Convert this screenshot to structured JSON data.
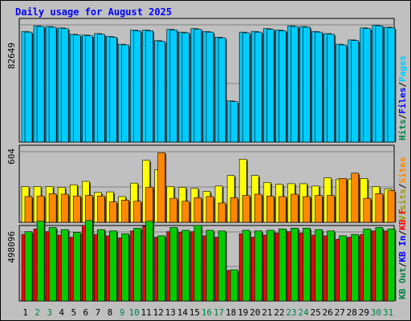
{
  "colors": {
    "background": "#c0c0c0",
    "panel": "#c0c0c0",
    "hits": "#00ccff",
    "files": "#0000ff",
    "pages": "#00ccff",
    "visits": "#ffff00",
    "sites": "#ff8800",
    "kb_in": "#00cc00",
    "kb_out": "#00cc00",
    "kb_f": "#ff0000",
    "weekend_label": "#008040",
    "weekday_label": "#000000",
    "title": "#0000ff"
  },
  "chart_data": {
    "type": "bar",
    "title": "Daily usage for August 2025",
    "categories": [
      "1",
      "2",
      "3",
      "4",
      "5",
      "6",
      "7",
      "8",
      "9",
      "10",
      "11",
      "12",
      "13",
      "14",
      "15",
      "16",
      "17",
      "18",
      "19",
      "20",
      "21",
      "22",
      "23",
      "24",
      "25",
      "26",
      "27",
      "28",
      "29",
      "30",
      "31"
    ],
    "weekend_days": [
      "2",
      "3",
      "9",
      "10",
      "16",
      "17",
      "23",
      "24",
      "30",
      "31"
    ],
    "panels": [
      {
        "id": "top",
        "ytick": "82649",
        "ymax": 82649,
        "side_labels": [
          {
            "text": "Hits",
            "color": "#008040"
          },
          {
            "text": "/",
            "color": "#000000"
          },
          {
            "text": "Files",
            "color": "#0000ff"
          },
          {
            "text": "/",
            "color": "#000000"
          },
          {
            "text": "Pages",
            "color": "#00ccff"
          }
        ],
        "series": [
          {
            "name": "Hits",
            "color": "#008040",
            "values": [
              78000,
              82000,
              81500,
              80500,
              76000,
              75500,
              76500,
              74500,
              69000,
              79000,
              79000,
              71500,
              79500,
              77500,
              80000,
              78000,
              74000,
              29000,
              77500,
              78000,
              80000,
              79000,
              82000,
              81500,
              78000,
              76500,
              69000,
              72000,
              80500,
              82500,
              81000
            ]
          },
          {
            "name": "Pages",
            "color": "#00ccff",
            "values": [
              77500,
              81500,
              81000,
              80000,
              75500,
              75000,
              76000,
              74000,
              68500,
              78500,
              78500,
              71000,
              79000,
              77000,
              79500,
              77500,
              73500,
              28500,
              77000,
              77500,
              79500,
              78500,
              81500,
              81000,
              77500,
              76000,
              68500,
              71500,
              80000,
              82000,
              80500
            ]
          }
        ]
      },
      {
        "id": "middle",
        "ytick": "604",
        "ymax": 604,
        "side_labels": [
          {
            "text": "Visits",
            "color": "#999900"
          },
          {
            "text": "/",
            "color": "#000000"
          },
          {
            "text": "Sites",
            "color": "#ff8800"
          }
        ],
        "series": [
          {
            "name": "Visits",
            "color": "#ffff00",
            "values": [
              305,
              305,
              305,
              300,
              320,
              350,
              255,
              260,
              220,
              335,
              530,
              450,
              305,
              300,
              290,
              265,
              310,
              400,
              540,
              400,
              340,
              325,
              330,
              330,
              310,
              380,
              370,
              370,
              375,
              305,
              285
            ]
          },
          {
            "name": "Sites",
            "color": "#ff8800",
            "values": [
              220,
              225,
              245,
              240,
              225,
              230,
              225,
              175,
              190,
              180,
              300,
              595,
              205,
              180,
              210,
              220,
              165,
              210,
              230,
              240,
              225,
              220,
              240,
              220,
              230,
              230,
              375,
              420,
              205,
              245,
              270
            ]
          }
        ]
      },
      {
        "id": "bottom",
        "ytick": "498096",
        "ymax": 498096,
        "side_labels": [
          {
            "text": "KB Out",
            "color": "#008040"
          },
          {
            "text": "/",
            "color": "#000000"
          },
          {
            "text": "KB In",
            "color": "#0000ff"
          },
          {
            "text": "/",
            "color": "#000000"
          },
          {
            "text": "KB F",
            "color": "#ff0000"
          }
        ],
        "series": [
          {
            "name": "KB F",
            "color": "#ff0000",
            "values": [
              480000,
              520000,
              500000,
              475000,
              460000,
              545000,
              480000,
              470000,
              455000,
              505000,
              540000,
              460000,
              500000,
              495000,
              500000,
              470000,
              460000,
              220000,
              485000,
              460000,
              475000,
              490000,
              500000,
              490000,
              475000,
              470000,
              445000,
              460000,
              480000,
              505000,
              505000
            ]
          },
          {
            "name": "KB In",
            "color": "#00cc00",
            "values": [
              500000,
              575000,
              530000,
              515000,
              495000,
              580000,
              515000,
              505000,
              485000,
              525000,
              575000,
              470000,
              530000,
              510000,
              545000,
              510000,
              505000,
              225000,
              510000,
              505000,
              510000,
              520000,
              525000,
              525000,
              515000,
              505000,
              470000,
              480000,
              520000,
              530000,
              520000
            ]
          }
        ]
      }
    ]
  }
}
